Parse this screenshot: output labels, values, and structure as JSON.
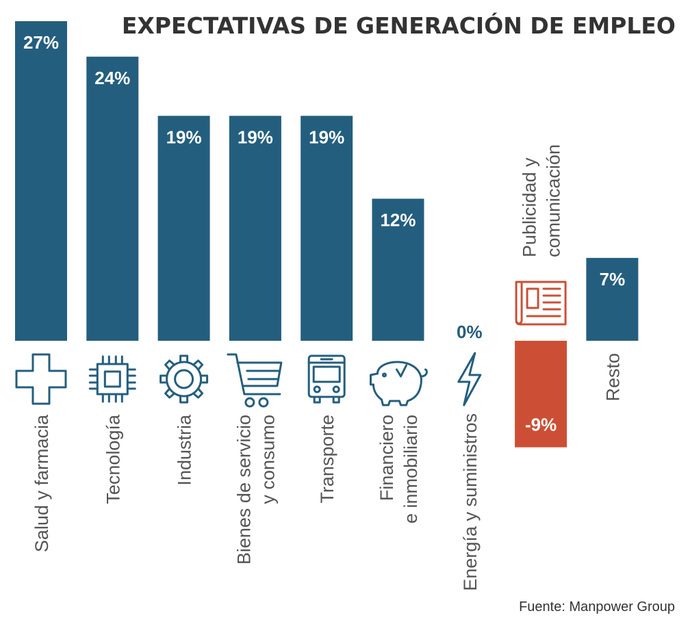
{
  "title": "EXPECTATIVAS DE GENERACIÓN DE EMPLEO",
  "source": "Fuente: Manpower Group",
  "colors": {
    "positive": "#245e7e",
    "negative": "#cc4f35",
    "text_dark": "#333333",
    "text_label": "#555555",
    "text_value_light": "#ffffff"
  },
  "chart_data": {
    "type": "bar",
    "unit": "%",
    "categories": [
      "Salud y farmacia",
      "Tecnología",
      "Industria",
      "Bienes de servicio y consumo",
      "Transporte",
      "Financiero e inmobiliario",
      "Energía y suministros",
      "Publicidad y comunicación",
      "Resto"
    ],
    "category_lines": [
      [
        "Salud y farmacia"
      ],
      [
        "Tecnología"
      ],
      [
        "Industria"
      ],
      [
        "Bienes de servicio",
        "y consumo"
      ],
      [
        "Transporte"
      ],
      [
        "Financiero",
        "e inmobiliario"
      ],
      [
        "Energía y suministros"
      ],
      [
        "Publicidad y",
        "comunicación"
      ],
      [
        "Resto"
      ]
    ],
    "values": [
      27,
      24,
      19,
      19,
      19,
      12,
      0,
      -9,
      7
    ],
    "value_labels": [
      "27%",
      "24%",
      "19%",
      "19%",
      "19%",
      "12%",
      "0%",
      "-9%",
      "7%"
    ],
    "icons": [
      "cross-icon",
      "chip-icon",
      "gear-icon",
      "cart-icon",
      "bus-icon",
      "piggy-bank-icon",
      "lightning-icon",
      "newspaper-icon",
      ""
    ],
    "ylim": [
      -9,
      27
    ],
    "grid": false,
    "legend": "none"
  }
}
